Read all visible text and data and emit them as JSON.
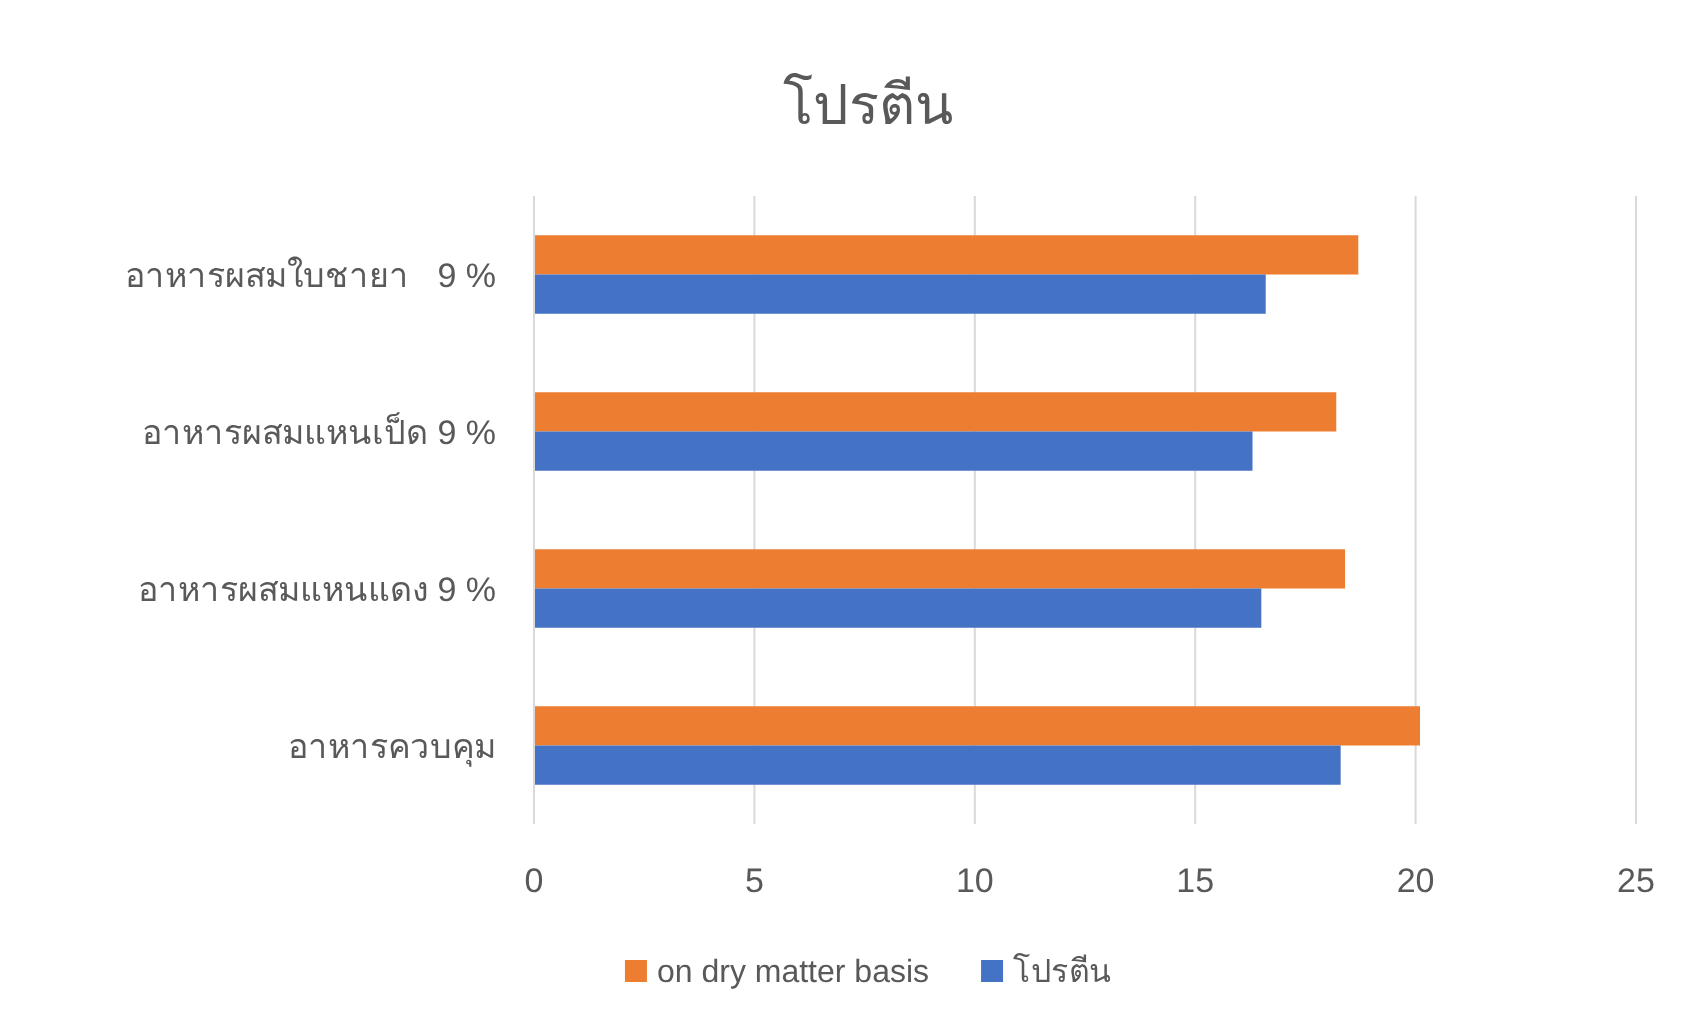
{
  "chart_data": {
    "type": "bar",
    "orientation": "horizontal",
    "title": "โปรตีน",
    "categories": [
      "อาหารผสมใบชายา   9 %",
      "อาหารผสมแหนเป็ด 9 %",
      "อาหารผสมแหนแดง 9 %",
      "อาหารควบคุม"
    ],
    "series": [
      {
        "name": "on dry matter basis",
        "color": "#ed7d31",
        "values": [
          18.7,
          18.2,
          18.4,
          20.1
        ]
      },
      {
        "name": "โปรตีน",
        "color": "#4472c4",
        "values": [
          16.6,
          16.3,
          16.5,
          18.3
        ]
      }
    ],
    "xlim": [
      0,
      25
    ],
    "xticks": [
      0,
      5,
      10,
      15,
      20,
      25
    ],
    "grid": "x",
    "legend": "bottom"
  }
}
